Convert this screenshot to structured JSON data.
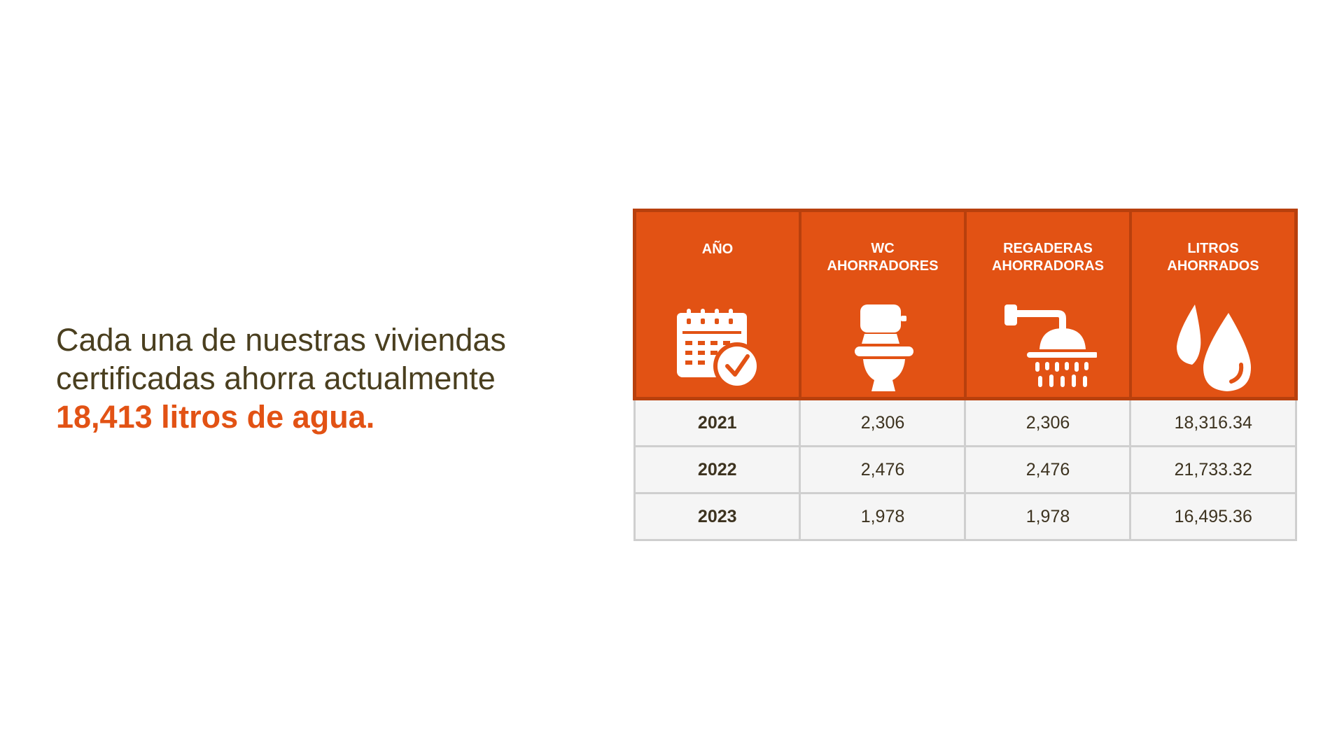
{
  "intro": {
    "line1": "Cada una de nuestras viviendas",
    "line2": "certificadas ahorra actualmente",
    "highlight": "18,413 litros de agua."
  },
  "table": {
    "headers": {
      "year": "AÑO",
      "wc": "WC\nAHORRADORES",
      "showers": "REGADERAS\nAHORRADORAS",
      "liters": "LITROS\nAHORRADOS"
    },
    "header_icons": [
      "calendar-check-icon",
      "toilet-icon",
      "shower-icon",
      "water-drops-icon"
    ],
    "rows": [
      {
        "year": "2021",
        "wc": "2,306",
        "showers": "2,306",
        "liters": "18,316.34"
      },
      {
        "year": "2022",
        "wc": "2,476",
        "showers": "2,476",
        "liters": "21,733.32"
      },
      {
        "year": "2023",
        "wc": "1,978",
        "showers": "1,978",
        "liters": "16,495.36"
      }
    ]
  },
  "colors": {
    "accent": "#e25214",
    "text": "#4a3f1f",
    "cell_background": "#f5f5f5",
    "cell_border": "#cfcfcf"
  }
}
